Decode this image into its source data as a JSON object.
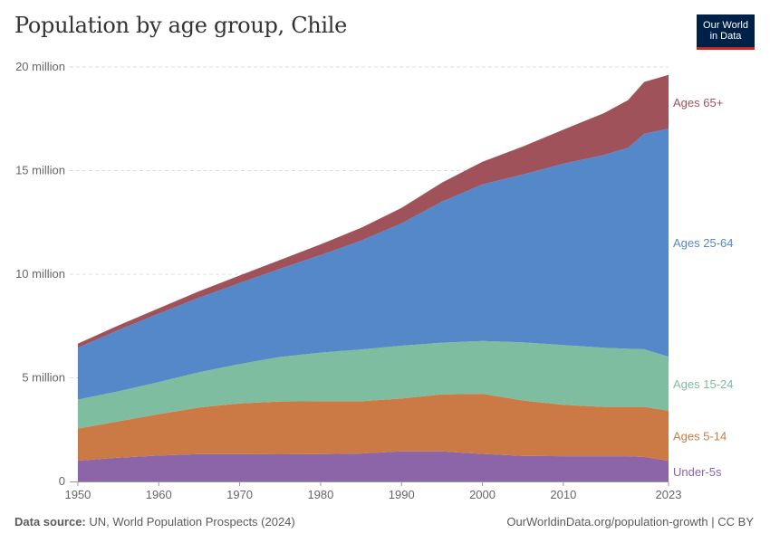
{
  "header": {
    "title": "Population by age group, Chile",
    "logo_line1": "Our World",
    "logo_line2": "in Data"
  },
  "footer": {
    "source_label": "Data source:",
    "source_text": "UN, World Population Prospects (2024)",
    "url": "OurWorldinData.org/population-growth | CC BY"
  },
  "chart_data": {
    "type": "area",
    "stacked": true,
    "x": [
      1950,
      1955,
      1960,
      1965,
      1970,
      1975,
      1980,
      1985,
      1990,
      1995,
      2000,
      2005,
      2010,
      2015,
      2018,
      2020,
      2023
    ],
    "series": [
      {
        "name": "Under-5s",
        "color": "#8c64a8",
        "values": [
          1.0,
          1.15,
          1.25,
          1.32,
          1.32,
          1.31,
          1.32,
          1.35,
          1.45,
          1.45,
          1.33,
          1.23,
          1.22,
          1.22,
          1.22,
          1.18,
          1.0
        ]
      },
      {
        "name": "Ages 5-14",
        "color": "#cc7a45",
        "values": [
          1.55,
          1.75,
          2.0,
          2.25,
          2.45,
          2.55,
          2.55,
          2.52,
          2.55,
          2.75,
          2.9,
          2.68,
          2.48,
          2.38,
          2.38,
          2.42,
          2.42
        ]
      },
      {
        "name": "Ages 15-24",
        "color": "#7ebda0",
        "values": [
          1.4,
          1.45,
          1.55,
          1.7,
          1.9,
          2.15,
          2.35,
          2.5,
          2.55,
          2.5,
          2.55,
          2.8,
          2.88,
          2.85,
          2.8,
          2.78,
          2.6
        ]
      },
      {
        "name": "Ages 25-64",
        "color": "#5488c8",
        "values": [
          2.5,
          2.95,
          3.3,
          3.6,
          3.9,
          4.25,
          4.7,
          5.25,
          5.9,
          6.8,
          7.55,
          8.1,
          8.75,
          9.3,
          9.7,
          10.4,
          11.0
        ]
      },
      {
        "name": "Ages 65+",
        "color": "#a0525b",
        "values": [
          0.2,
          0.23,
          0.26,
          0.31,
          0.37,
          0.43,
          0.52,
          0.62,
          0.75,
          0.92,
          1.1,
          1.35,
          1.65,
          2.02,
          2.3,
          2.5,
          2.6
        ]
      }
    ],
    "y_unit": "million",
    "ylim": [
      0,
      20
    ],
    "y_ticks": [
      0,
      5,
      10,
      15,
      20
    ],
    "y_tick_labels": [
      "0",
      "5 million",
      "10 million",
      "15 million",
      "20 million"
    ],
    "x_ticks": [
      1950,
      1960,
      1970,
      1980,
      1990,
      2000,
      2010,
      2023
    ],
    "x_tick_labels": [
      "1950",
      "1960",
      "1970",
      "1980",
      "1990",
      "2000",
      "2010",
      "2023"
    ],
    "xlim": [
      1949,
      2023
    ],
    "grid": "horizontal dashed",
    "legend": "inline labels at right"
  }
}
